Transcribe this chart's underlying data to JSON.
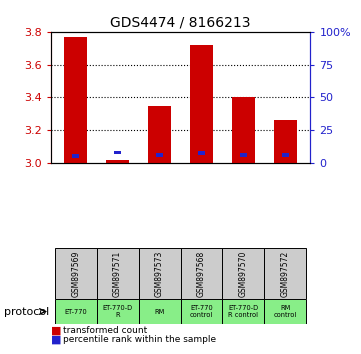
{
  "title": "GDS4474 / 8166213",
  "samples": [
    "GSM897569",
    "GSM897571",
    "GSM897573",
    "GSM897568",
    "GSM897570",
    "GSM897572"
  ],
  "red_values": [
    3.77,
    3.02,
    3.35,
    3.72,
    3.4,
    3.26
  ],
  "blue_values": [
    3.045,
    3.065,
    3.05,
    3.06,
    3.05,
    3.05
  ],
  "ylim_left": [
    3.0,
    3.8
  ],
  "ylim_right": [
    0,
    100
  ],
  "yticks_left": [
    3.0,
    3.2,
    3.4,
    3.6,
    3.8
  ],
  "yticks_right": [
    0,
    25,
    50,
    75,
    100
  ],
  "ytick_labels_right": [
    "0",
    "25",
    "50",
    "75",
    "100%"
  ],
  "red_color": "#cc0000",
  "blue_color": "#2222cc",
  "protocols": [
    "ET-770",
    "ET-770-D\nR",
    "RM",
    "ET-770\ncontrol",
    "ET-770-D\nR control",
    "RM\ncontrol"
  ],
  "protocol_label": "protocol",
  "legend_red": "transformed count",
  "legend_blue": "percentile rank within the sample",
  "sample_bg": "#cccccc",
  "protocol_bg": "#88ee88",
  "grid_linestyle": "dotted"
}
